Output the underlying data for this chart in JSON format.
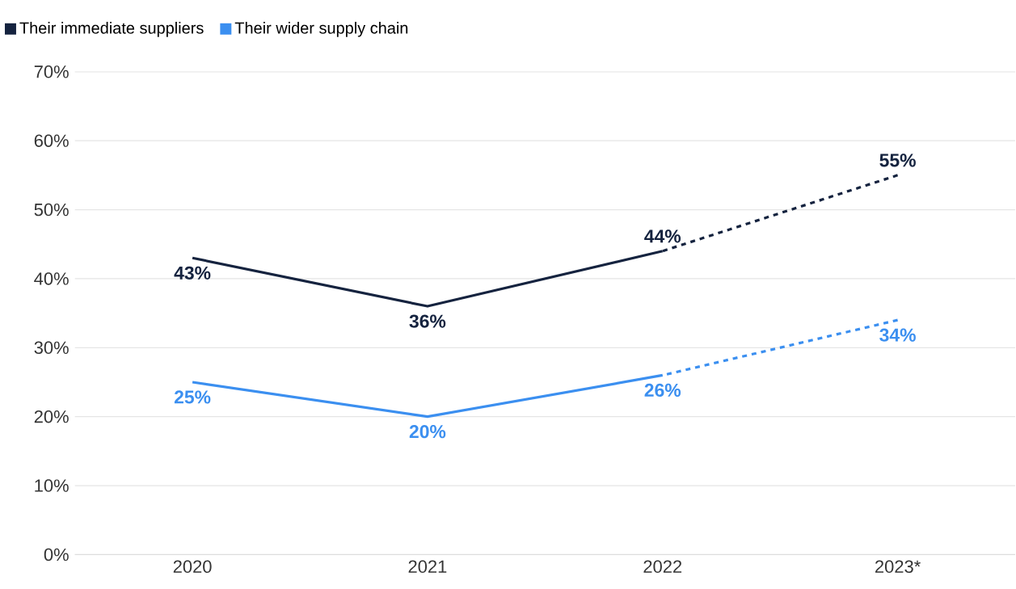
{
  "chart_data": {
    "type": "line",
    "categories": [
      "2020",
      "2021",
      "2022",
      "2023*"
    ],
    "series": [
      {
        "name": "Their immediate suppliers",
        "color": "#15233f",
        "values": [
          43,
          36,
          44,
          null
        ],
        "value_labels": [
          "43%",
          "36%",
          "44%",
          null
        ],
        "line_style": "solid"
      },
      {
        "color": "#15233f",
        "values": [
          null,
          null,
          44,
          55
        ],
        "value_labels": [
          null,
          null,
          null,
          "55%"
        ],
        "line_style": "dashed"
      },
      {
        "name": "Their wider supply chain",
        "color": "#3b8ff0",
        "values": [
          25,
          20,
          26,
          null
        ],
        "value_labels": [
          "25%",
          "20%",
          "26%",
          null
        ],
        "line_style": "solid"
      },
      {
        "color": "#3b8ff0",
        "values": [
          null,
          null,
          26,
          34
        ],
        "value_labels": [
          null,
          null,
          null,
          "34%"
        ],
        "line_style": "dashed"
      }
    ],
    "ylim": [
      0,
      70
    ],
    "yticks": [
      {
        "value": 0,
        "label": "0%"
      },
      {
        "value": 10,
        "label": "10%"
      },
      {
        "value": 20,
        "label": "20%"
      },
      {
        "value": 30,
        "label": "30%"
      },
      {
        "value": 40,
        "label": "40%"
      },
      {
        "value": 50,
        "label": "50%"
      },
      {
        "value": 60,
        "label": "60%"
      },
      {
        "value": 70,
        "label": "70%"
      }
    ],
    "grid": "y",
    "legend": "top left",
    "marker": "none"
  }
}
